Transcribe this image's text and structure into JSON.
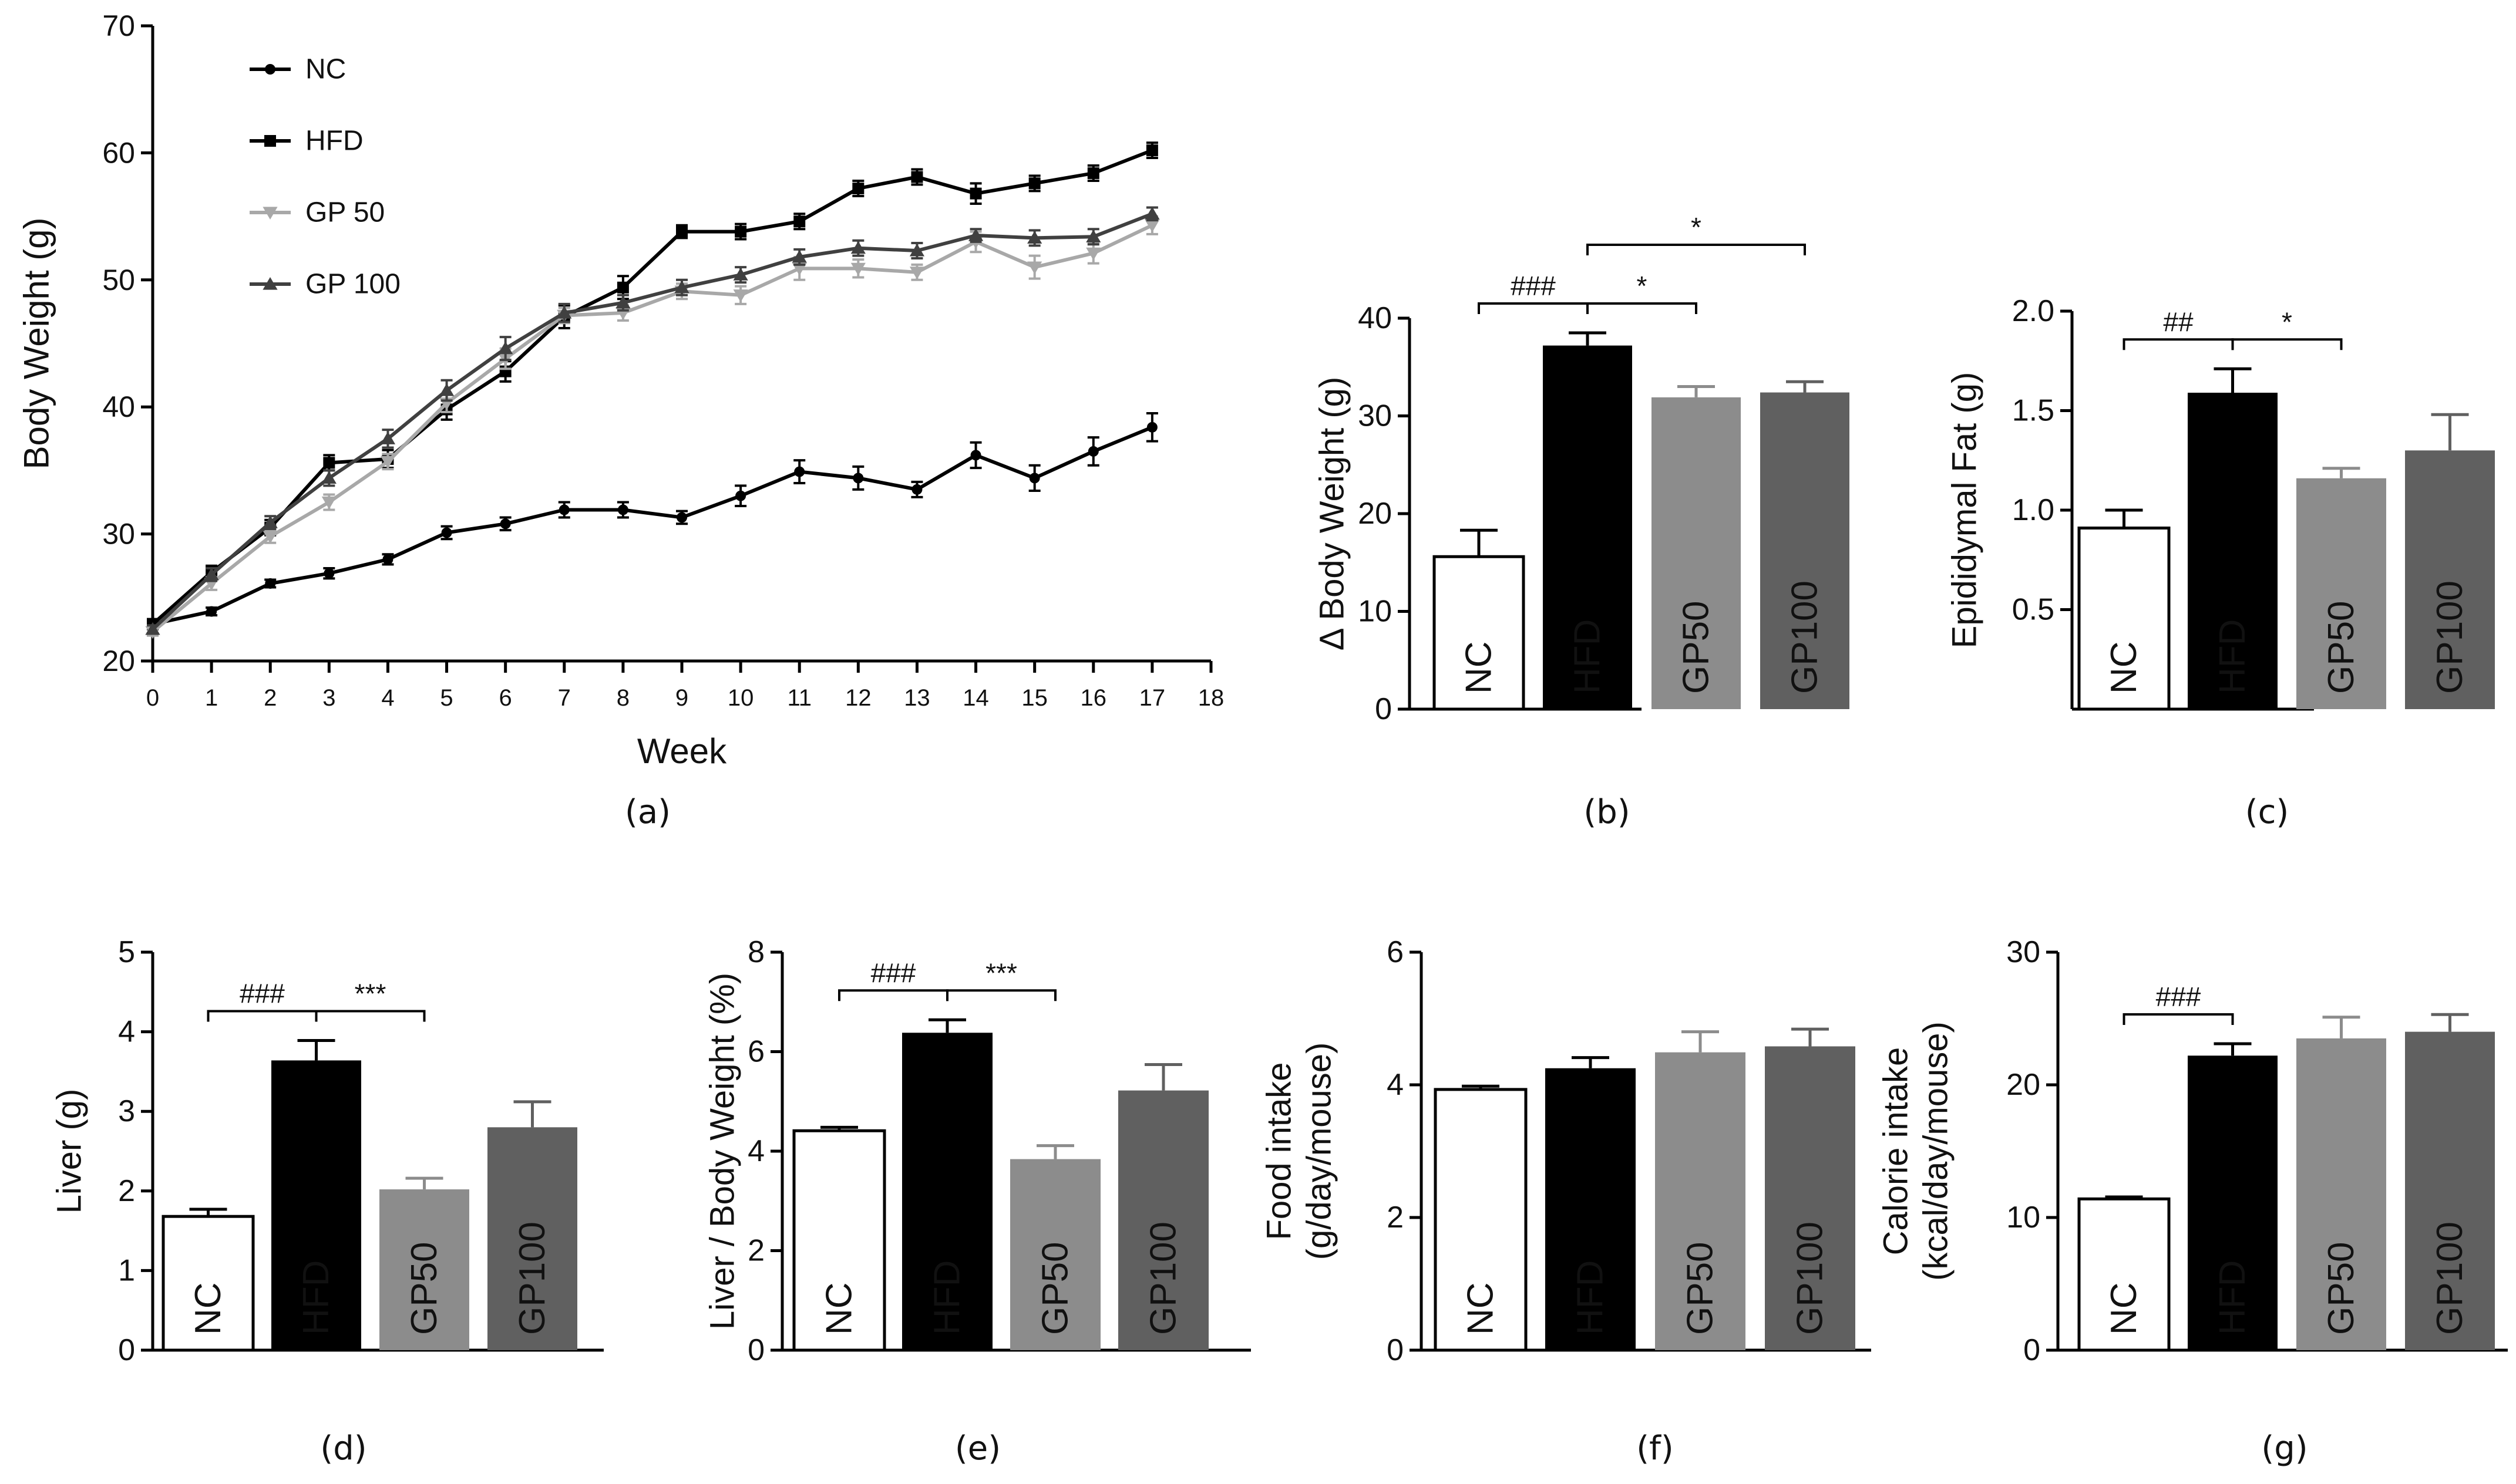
{
  "chart_data": [
    {
      "id": "a",
      "type": "line",
      "panel_label": "(a)",
      "title": "",
      "xlabel": "Week",
      "ylabel": "Body Weight (g)",
      "xlim": [
        0,
        18
      ],
      "ylim": [
        20,
        70
      ],
      "xticks": [
        "0",
        "1",
        "2",
        "3",
        "4",
        "5",
        "6",
        "7",
        "8",
        "9",
        "10",
        "11",
        "12",
        "13",
        "14",
        "15",
        "16",
        "17",
        "18"
      ],
      "yticks": [
        "20",
        "30",
        "40",
        "50",
        "60",
        "70"
      ],
      "legend_position": "top-left",
      "series": [
        {
          "name": "NC",
          "color": "#000000",
          "marker": "circle",
          "x": [
            0,
            1,
            2,
            3,
            4,
            5,
            6,
            7,
            8,
            9,
            10,
            11,
            12,
            13,
            14,
            15,
            16,
            17
          ],
          "values": [
            22.9,
            23.9,
            26.1,
            26.9,
            28.0,
            30.1,
            30.8,
            31.9,
            31.9,
            31.3,
            33.0,
            34.9,
            34.4,
            33.5,
            36.2,
            34.4,
            36.5,
            38.4
          ],
          "err": [
            0.3,
            0.3,
            0.3,
            0.4,
            0.4,
            0.5,
            0.5,
            0.6,
            0.6,
            0.5,
            0.8,
            0.9,
            0.9,
            0.6,
            1.0,
            1.0,
            1.1,
            1.1
          ]
        },
        {
          "name": "HFD",
          "color": "#000000",
          "marker": "square",
          "x": [
            0,
            1,
            2,
            3,
            4,
            5,
            6,
            7,
            8,
            9,
            10,
            11,
            12,
            13,
            14,
            15,
            16,
            17
          ],
          "values": [
            22.9,
            27.0,
            30.5,
            35.6,
            35.9,
            39.8,
            42.8,
            47.1,
            49.4,
            53.8,
            53.8,
            54.6,
            57.2,
            58.1,
            56.8,
            57.6,
            58.4,
            60.2
          ],
          "err": [
            0.4,
            0.5,
            0.6,
            0.6,
            0.7,
            0.8,
            0.8,
            0.9,
            0.9,
            0.5,
            0.6,
            0.6,
            0.6,
            0.6,
            0.8,
            0.6,
            0.6,
            0.6
          ]
        },
        {
          "name": "GP 50",
          "color": "#a8a8a8",
          "marker": "triangle-down",
          "x": [
            0,
            1,
            2,
            3,
            4,
            5,
            6,
            7,
            8,
            9,
            10,
            11,
            12,
            13,
            14,
            15,
            16,
            17
          ],
          "values": [
            22.3,
            26.1,
            29.8,
            32.5,
            35.7,
            40.3,
            43.8,
            47.2,
            47.4,
            49.1,
            48.8,
            50.9,
            50.9,
            50.6,
            53.0,
            51.0,
            52.1,
            54.3
          ],
          "err": [
            0.3,
            0.5,
            0.5,
            0.6,
            0.6,
            0.7,
            0.8,
            0.6,
            0.6,
            0.6,
            0.7,
            0.9,
            0.7,
            0.6,
            0.8,
            0.9,
            0.8,
            0.7
          ]
        },
        {
          "name": "GP 100",
          "color": "#404040",
          "marker": "triangle-up",
          "x": [
            0,
            1,
            2,
            3,
            4,
            5,
            6,
            7,
            8,
            9,
            10,
            11,
            12,
            13,
            14,
            15,
            16,
            17
          ],
          "values": [
            22.5,
            26.8,
            30.9,
            34.4,
            37.5,
            41.3,
            44.6,
            47.4,
            48.2,
            49.4,
            50.4,
            51.8,
            52.5,
            52.3,
            53.5,
            53.3,
            53.4,
            55.2
          ],
          "err": [
            0.3,
            0.5,
            0.5,
            0.6,
            0.7,
            0.8,
            0.9,
            0.7,
            0.6,
            0.6,
            0.6,
            0.6,
            0.6,
            0.6,
            0.5,
            0.6,
            0.6,
            0.5
          ]
        }
      ]
    },
    {
      "id": "b",
      "type": "bar",
      "panel_label": "(b)",
      "ylabel_lines": [
        "Δ Body Weight (g)"
      ],
      "ylim": [
        0,
        40
      ],
      "yticks": [
        "0",
        "10",
        "20",
        "30",
        "40"
      ],
      "categories": [
        "NC",
        "HFD",
        "GP50",
        "GP100"
      ],
      "values": [
        15.6,
        37.2,
        31.9,
        32.4
      ],
      "err": [
        2.7,
        1.3,
        1.1,
        1.1
      ],
      "colors": [
        "#ffffff",
        "#000000",
        "#8c8c8c",
        "#606060"
      ],
      "label_colors": [
        "#000000",
        "#ffffff",
        "#ffffff",
        "#ffffff"
      ],
      "brackets": [
        {
          "from": 0,
          "to": 1,
          "level": 1,
          "label": "###"
        },
        {
          "from": 1,
          "to": 2,
          "level": 1,
          "label": "*"
        },
        {
          "from": 1,
          "to": 3,
          "level": 2,
          "label": "*"
        }
      ]
    },
    {
      "id": "c",
      "type": "bar",
      "panel_label": "(c)",
      "ylabel_lines": [
        "Epididymal Fat (g)"
      ],
      "ylim": [
        0,
        2.0
      ],
      "yticks": [
        "0.5",
        "1.0",
        "1.5",
        "2.0"
      ],
      "categories": [
        "NC",
        "HFD",
        "GP50",
        "GP100"
      ],
      "values": [
        0.91,
        1.59,
        1.16,
        1.3
      ],
      "err": [
        0.09,
        0.12,
        0.05,
        0.18
      ],
      "colors": [
        "#ffffff",
        "#000000",
        "#8c8c8c",
        "#606060"
      ],
      "label_colors": [
        "#000000",
        "#ffffff",
        "#ffffff",
        "#ffffff"
      ],
      "brackets": [
        {
          "from": 0,
          "to": 1,
          "level": 1,
          "label": "##"
        },
        {
          "from": 1,
          "to": 2,
          "level": 1,
          "label": "*"
        }
      ]
    },
    {
      "id": "d",
      "type": "bar",
      "panel_label": "(d)",
      "ylabel_lines": [
        "Liver (g)"
      ],
      "ylim": [
        0,
        5
      ],
      "yticks": [
        "0",
        "1",
        "2",
        "3",
        "4",
        "5"
      ],
      "categories": [
        "NC",
        "HFD",
        "GP50",
        "GP100"
      ],
      "values": [
        1.68,
        3.64,
        2.02,
        2.8
      ],
      "err": [
        0.09,
        0.25,
        0.14,
        0.32
      ],
      "colors": [
        "#ffffff",
        "#000000",
        "#8c8c8c",
        "#606060"
      ],
      "label_colors": [
        "#000000",
        "#ffffff",
        "#ffffff",
        "#ffffff"
      ],
      "brackets": [
        {
          "from": 0,
          "to": 1,
          "level": 1,
          "label": "###"
        },
        {
          "from": 1,
          "to": 2,
          "level": 1,
          "label": "***"
        }
      ]
    },
    {
      "id": "e",
      "type": "bar",
      "panel_label": "(e)",
      "ylabel_lines": [
        "Liver / Body Weight (%)"
      ],
      "ylim": [
        0,
        8
      ],
      "yticks": [
        "0",
        "2",
        "4",
        "6",
        "8"
      ],
      "categories": [
        "NC",
        "HFD",
        "GP50",
        "GP100"
      ],
      "values": [
        4.41,
        6.38,
        3.84,
        5.22
      ],
      "err": [
        0.07,
        0.26,
        0.27,
        0.52
      ],
      "colors": [
        "#ffffff",
        "#000000",
        "#8c8c8c",
        "#606060"
      ],
      "label_colors": [
        "#000000",
        "#ffffff",
        "#ffffff",
        "#ffffff"
      ],
      "brackets": [
        {
          "from": 0,
          "to": 1,
          "level": 1,
          "label": "###"
        },
        {
          "from": 1,
          "to": 2,
          "level": 1,
          "label": "***"
        }
      ]
    },
    {
      "id": "f",
      "type": "bar",
      "panel_label": "(f)",
      "ylabel_lines": [
        "Food intake",
        "(g/day/mouse)"
      ],
      "ylim": [
        0,
        6
      ],
      "yticks": [
        "0",
        "2",
        "4",
        "6"
      ],
      "categories": [
        "NC",
        "HFD",
        "GP50",
        "GP100"
      ],
      "values": [
        3.93,
        4.25,
        4.49,
        4.58
      ],
      "err": [
        0.05,
        0.16,
        0.31,
        0.26
      ],
      "colors": [
        "#ffffff",
        "#000000",
        "#8c8c8c",
        "#606060"
      ],
      "label_colors": [
        "#000000",
        "#ffffff",
        "#ffffff",
        "#ffffff"
      ],
      "brackets": []
    },
    {
      "id": "g",
      "type": "bar",
      "panel_label": "(g)",
      "ylabel_lines": [
        "Calorie intake",
        "(kcal/day/mouse)"
      ],
      "ylim": [
        0,
        30
      ],
      "yticks": [
        "0",
        "10",
        "20",
        "30"
      ],
      "categories": [
        "NC",
        "HFD",
        "GP50",
        "GP100"
      ],
      "values": [
        11.4,
        22.2,
        23.5,
        24.0
      ],
      "err": [
        0.15,
        0.9,
        1.6,
        1.3
      ],
      "colors": [
        "#ffffff",
        "#000000",
        "#8c8c8c",
        "#606060"
      ],
      "label_colors": [
        "#000000",
        "#ffffff",
        "#ffffff",
        "#ffffff"
      ],
      "brackets": [
        {
          "from": 0,
          "to": 1,
          "level": 1,
          "label": "###"
        }
      ]
    }
  ]
}
